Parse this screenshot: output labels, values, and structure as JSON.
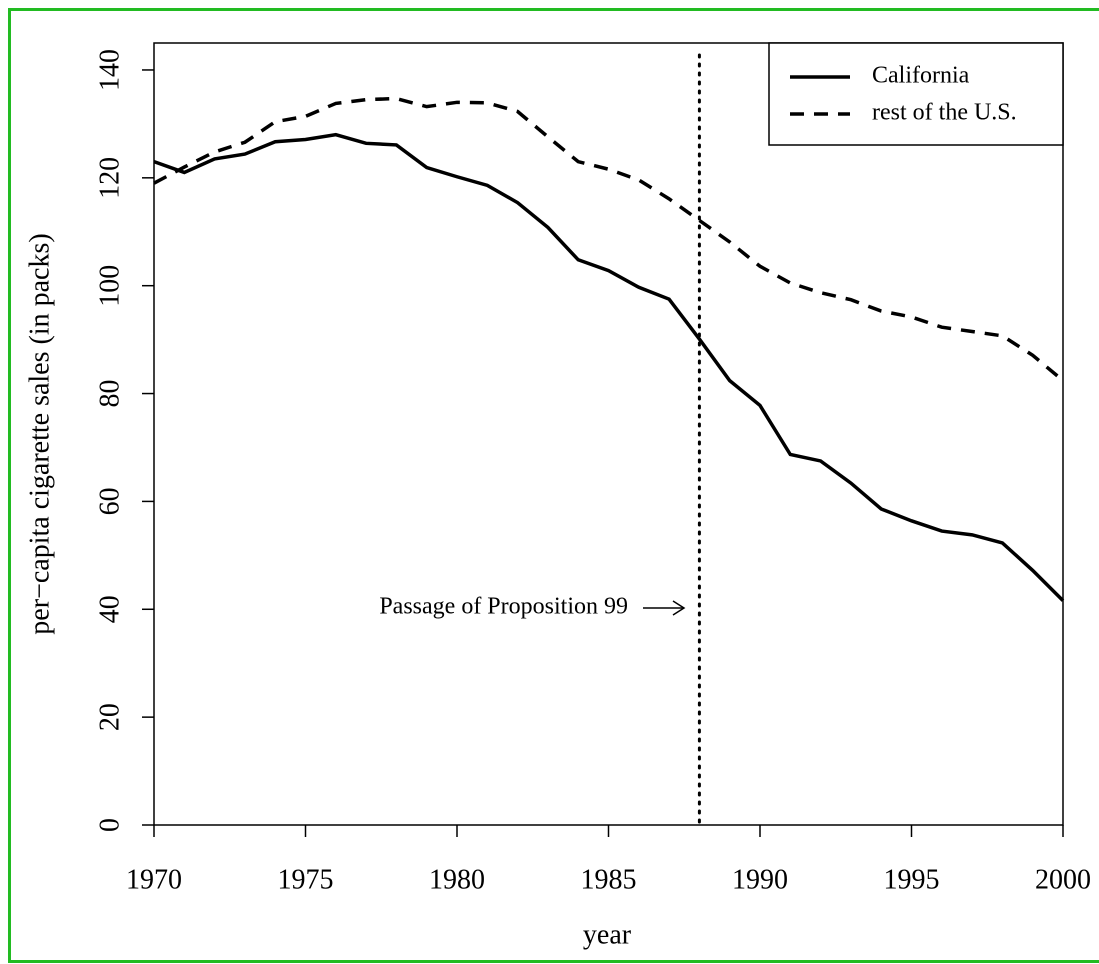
{
  "chart_data": {
    "type": "line",
    "xlabel": "year",
    "ylabel": "per−capita cigarette sales (in packs)",
    "x": [
      1970,
      1971,
      1972,
      1973,
      1974,
      1975,
      1976,
      1977,
      1978,
      1979,
      1980,
      1981,
      1982,
      1983,
      1984,
      1985,
      1986,
      1987,
      1988,
      1989,
      1990,
      1991,
      1992,
      1993,
      1994,
      1995,
      1996,
      1997,
      1998,
      1999,
      2000
    ],
    "series": [
      {
        "name": "California",
        "color": "#000000",
        "dash": "solid",
        "values": [
          123,
          121,
          123.5,
          124.4,
          126.7,
          127.1,
          128,
          126.4,
          126.1,
          121.9,
          120.2,
          118.6,
          115.4,
          110.8,
          104.8,
          102.8,
          99.7,
          97.5,
          90.1,
          82.4,
          77.8,
          68.7,
          67.5,
          63.4,
          58.6,
          56.4,
          54.5,
          53.8,
          52.3,
          47.2,
          41.6
        ]
      },
      {
        "name": "rest of the U.S.",
        "color": "#000000",
        "dash": "dashed",
        "values": [
          119,
          122,
          124.8,
          126.6,
          130.4,
          131.4,
          133.8,
          134.5,
          134.7,
          133.2,
          134,
          133.9,
          132.3,
          127.6,
          123,
          121.6,
          119.6,
          116.1,
          112.1,
          108.1,
          103.6,
          100.5,
          98.7,
          97.4,
          95.3,
          94.2,
          92.3,
          91.5,
          90.7,
          87.1,
          82.4
        ]
      }
    ],
    "xlim": [
      1970,
      2000
    ],
    "xticks": [
      1970,
      1975,
      1980,
      1985,
      1990,
      1995,
      2000
    ],
    "ylim": [
      0,
      145
    ],
    "yticks": [
      0,
      20,
      40,
      60,
      80,
      100,
      120,
      140
    ],
    "vline": {
      "x": 1988,
      "label": "Passage of Proposition 99"
    },
    "legend": "topright"
  }
}
